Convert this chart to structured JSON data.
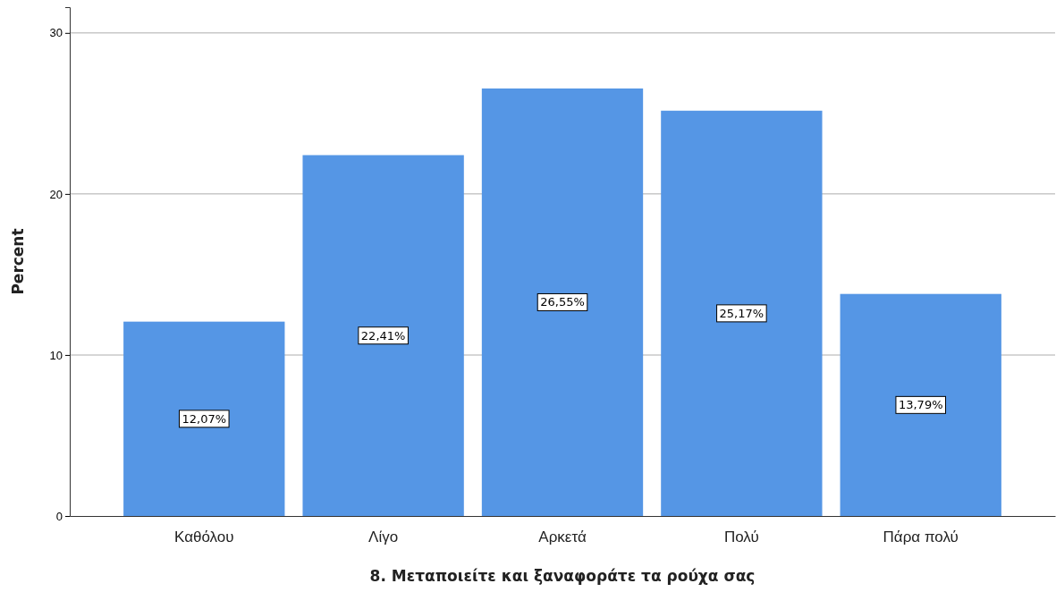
{
  "chart_data": {
    "type": "bar",
    "xlabel": "8. Μεταποιείτε και ξαναφοράτε τα ρούχα σας",
    "ylabel": "Percent",
    "categories": [
      "Καθόλου",
      "Λίγο",
      "Αρκετά",
      "Πολύ",
      "Πάρα πολύ"
    ],
    "values": [
      12.07,
      22.41,
      26.55,
      25.17,
      13.79
    ],
    "value_labels": [
      "12,07%",
      "22,41%",
      "26,55%",
      "25,17%",
      "13,79%"
    ],
    "color": "#5596e5",
    "ylim": [
      0,
      31.6
    ],
    "yticks": [
      0,
      10,
      20,
      30
    ],
    "grid": "y"
  }
}
